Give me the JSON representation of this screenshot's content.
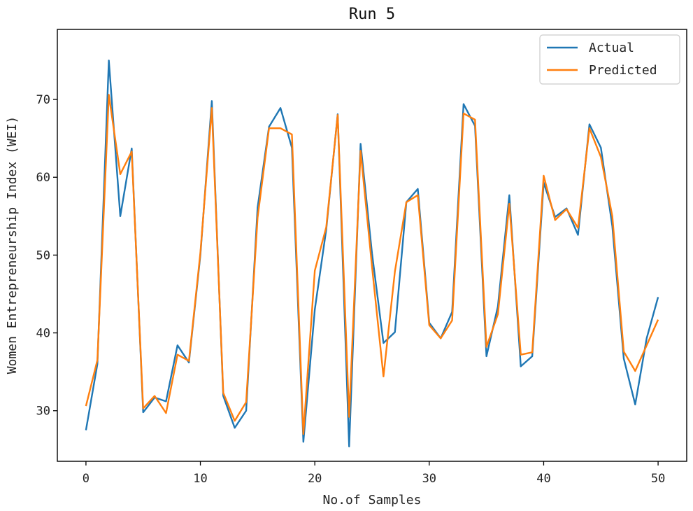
{
  "chart_data": {
    "type": "line",
    "title": "Run 5",
    "xlabel": "No.of Samples",
    "ylabel": "Women Entrepreneurship Index (WEI)",
    "xlim": [
      -2.5,
      52.5
    ],
    "ylim": [
      23.5,
      79.0
    ],
    "xticks": [
      0,
      10,
      20,
      30,
      40,
      50
    ],
    "yticks": [
      30,
      40,
      50,
      60,
      70
    ],
    "x": [
      0,
      1,
      2,
      3,
      4,
      5,
      6,
      7,
      8,
      9,
      10,
      11,
      12,
      13,
      14,
      15,
      16,
      17,
      18,
      19,
      20,
      21,
      22,
      23,
      24,
      25,
      26,
      27,
      28,
      29,
      30,
      31,
      32,
      33,
      34,
      35,
      36,
      37,
      38,
      39,
      40,
      41,
      42,
      43,
      44,
      45,
      46,
      47,
      48,
      49,
      50
    ],
    "series": [
      {
        "name": "Actual",
        "color": "#1f77b4",
        "values": [
          27.5,
          36.0,
          75.0,
          55.0,
          63.7,
          29.8,
          31.7,
          31.2,
          38.4,
          36.2,
          50.0,
          69.8,
          31.9,
          27.8,
          30.0,
          56.1,
          66.5,
          68.9,
          63.8,
          26.0,
          43.0,
          53.3,
          68.1,
          25.4,
          64.3,
          50.2,
          38.7,
          40.1,
          56.8,
          58.5,
          41.3,
          39.3,
          42.7,
          69.4,
          66.6,
          37.0,
          43.4,
          57.7,
          35.7,
          37.0,
          59.3,
          54.9,
          56.0,
          52.6,
          66.8,
          63.8,
          53.7,
          36.7,
          30.8,
          39.3,
          44.6
        ]
      },
      {
        "name": "Predicted",
        "color": "#ff7f0e",
        "values": [
          30.6,
          36.5,
          70.6,
          60.4,
          63.3,
          30.3,
          31.9,
          29.7,
          37.2,
          36.4,
          50.3,
          68.9,
          32.3,
          28.7,
          31.1,
          54.8,
          66.3,
          66.3,
          65.5,
          27.0,
          48.0,
          53.6,
          68.0,
          29.2,
          63.4,
          48.5,
          34.4,
          47.9,
          56.8,
          57.7,
          41.0,
          39.3,
          41.6,
          68.2,
          67.4,
          38.2,
          42.4,
          56.6,
          37.2,
          37.5,
          60.2,
          54.5,
          55.9,
          53.5,
          66.3,
          62.6,
          55.0,
          37.6,
          35.1,
          38.4,
          41.7
        ]
      }
    ],
    "legend": {
      "position": "top-right",
      "entries": [
        "Actual",
        "Predicted"
      ]
    },
    "grid": false
  }
}
